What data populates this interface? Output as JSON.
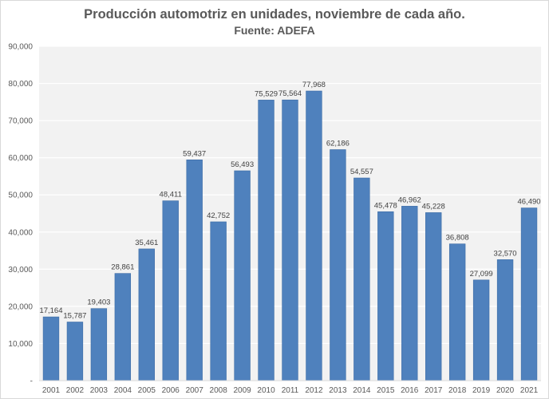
{
  "chart_data": {
    "type": "bar",
    "title": "Producción automotriz en unidades, noviembre de cada año.",
    "subtitle": "Fuente: ADEFA",
    "xlabel": "",
    "ylabel": "",
    "categories": [
      "2001",
      "2002",
      "2003",
      "2004",
      "2005",
      "2006",
      "2007",
      "2008",
      "2009",
      "2010",
      "2011",
      "2012",
      "2013",
      "2014",
      "2015",
      "2016",
      "2017",
      "2018",
      "2019",
      "2020",
      "2021"
    ],
    "values": [
      17164,
      15787,
      19403,
      28861,
      35461,
      48411,
      59437,
      42752,
      56493,
      75529,
      75564,
      77968,
      62186,
      54557,
      45478,
      46962,
      45228,
      36808,
      27099,
      32570,
      46490
    ],
    "value_labels": [
      "17,164",
      "15,787",
      "19,403",
      "28,861",
      "35,461",
      "48,411",
      "59,437",
      "42,752",
      "56,493",
      "75,529",
      "75,564",
      "77,968",
      "62,186",
      "54,557",
      "45,478",
      "46,962",
      "45,228",
      "36,808",
      "27,099",
      "32,570",
      "46,490"
    ],
    "ylim": [
      0,
      90000
    ],
    "yticks": [
      0,
      10000,
      20000,
      30000,
      40000,
      50000,
      60000,
      70000,
      80000,
      90000
    ],
    "ytick_labels": [
      "-",
      "10,000",
      "20,000",
      "30,000",
      "40,000",
      "50,000",
      "60,000",
      "70,000",
      "80,000",
      "90,000"
    ],
    "grid": true,
    "legend": "none",
    "colors": {
      "bar": "#4f81bd",
      "bar_edge": "#3e6da6",
      "plot_bg": "#f2f2f2",
      "grid": "#ffffff"
    }
  }
}
